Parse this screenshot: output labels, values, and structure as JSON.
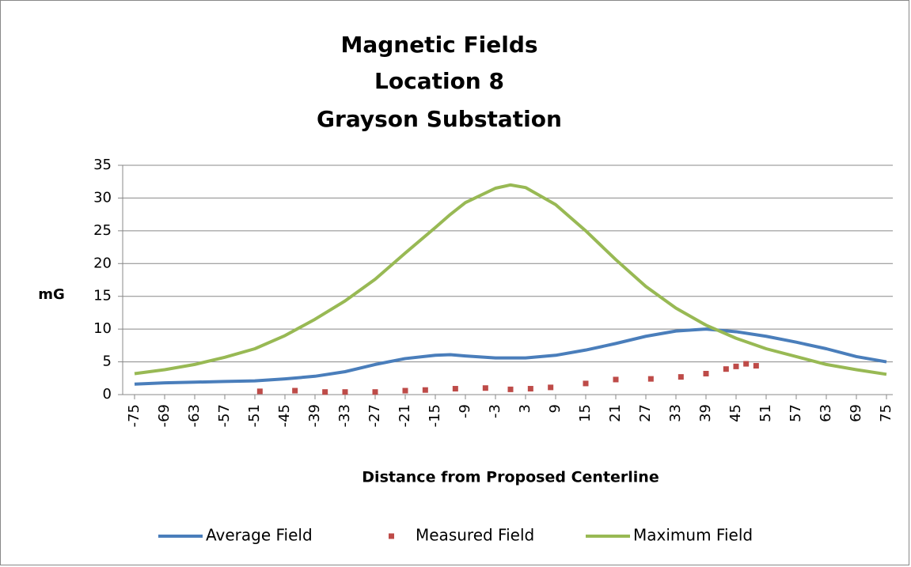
{
  "chart_data": {
    "type": "line",
    "title": [
      "Magnetic Fields",
      "Location 8",
      "Grayson Substation"
    ],
    "x_label": "Distance from Proposed Centerline",
    "y_label": "mG",
    "x": [
      -75,
      -69,
      -63,
      -57,
      -51,
      -45,
      -39,
      -33,
      -27,
      -21,
      -15,
      -12,
      -9,
      -3,
      0,
      3,
      9,
      15,
      21,
      27,
      33,
      39,
      45,
      51,
      57,
      63,
      69,
      75
    ],
    "series": [
      {
        "name": "Average Field",
        "color": "#4a7ebb",
        "values": [
          1.6,
          1.8,
          1.9,
          2.0,
          2.1,
          2.4,
          2.8,
          3.5,
          4.6,
          5.5,
          6.0,
          6.1,
          5.9,
          5.6,
          5.6,
          5.6,
          6.0,
          6.8,
          7.8,
          8.9,
          9.7,
          10.0,
          9.6,
          8.9,
          8.0,
          7.0,
          5.8,
          5.0
        ]
      },
      {
        "name": "Measured Field",
        "color": "#be4b48",
        "marker_only": true,
        "x": [
          -50,
          -43,
          -37,
          -33,
          -27,
          -21,
          -17,
          -11,
          -5,
          0,
          4,
          8,
          15,
          21,
          28,
          34,
          39,
          43,
          45,
          47,
          49
        ],
        "values": [
          0.5,
          0.6,
          0.4,
          0.4,
          0.4,
          0.6,
          0.7,
          0.9,
          1.0,
          0.8,
          0.9,
          1.1,
          1.7,
          2.3,
          2.4,
          2.7,
          3.2,
          3.9,
          4.3,
          4.7,
          4.4
        ]
      },
      {
        "name": "Maximum Field",
        "color": "#98b954",
        "values": [
          3.2,
          3.8,
          4.6,
          5.7,
          7.0,
          9.0,
          11.5,
          14.3,
          17.6,
          21.6,
          25.5,
          27.5,
          29.3,
          31.5,
          32.0,
          31.6,
          29.0,
          25.0,
          20.6,
          16.5,
          13.2,
          10.6,
          8.6,
          7.0,
          5.8,
          4.6,
          3.8,
          3.1
        ]
      }
    ],
    "xlim": [
      -75,
      75
    ],
    "xticks": [
      -75,
      -69,
      -63,
      -57,
      -51,
      -45,
      -39,
      -33,
      -27,
      -21,
      -15,
      -9,
      -3,
      3,
      9,
      15,
      21,
      27,
      33,
      39,
      45,
      51,
      57,
      63,
      69,
      75
    ],
    "ylim": [
      0,
      35
    ],
    "yticks": [
      0,
      5,
      10,
      15,
      20,
      25,
      30,
      35
    ],
    "grid": true,
    "legend": "bottom"
  }
}
